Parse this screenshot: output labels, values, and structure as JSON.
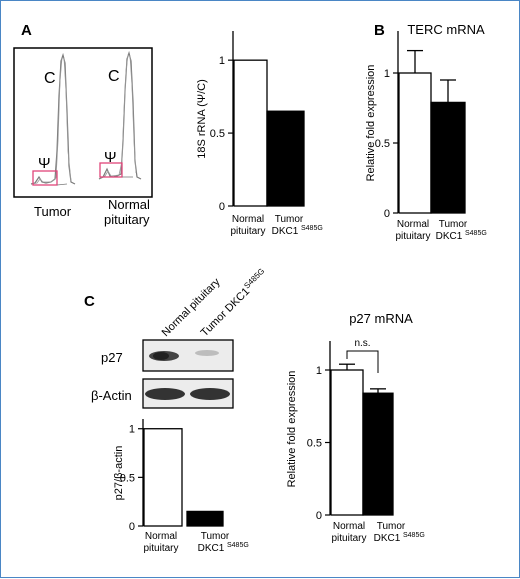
{
  "panels": {
    "a": "A",
    "b": "B",
    "c": "C"
  },
  "trace": {
    "peak_c": "C",
    "peak_psi": "Ψ",
    "tumor_label": "Tumor",
    "normal_label_1": "Normal",
    "normal_label_2": "pituitary"
  },
  "blot": {
    "lane1": "Normal pituitary",
    "lane2_main": "Tumor DKC1",
    "lane2_sup": "S485G",
    "row1": "p27",
    "row2": "β-Actin"
  },
  "categories": {
    "normal_1": "Normal",
    "normal_2": "pituitary",
    "tumor_1": "Tumor",
    "tumor_2": "DKC1",
    "tumor_sup": "S485G"
  },
  "colors": {
    "normal": "#ffffff",
    "tumor": "#000000",
    "trace": "#7a7a7a",
    "box": "#e0457a"
  },
  "chart_data": [
    {
      "id": "A_right",
      "type": "bar",
      "title": "",
      "ylabel": "18S rRNA (Ψ/C)",
      "ylim": [
        0,
        1.2
      ],
      "yticks": [
        0,
        0.5,
        1
      ],
      "categories": [
        "Normal pituitary",
        "Tumor DKC1 S485G"
      ],
      "values": [
        1.0,
        0.65
      ],
      "errors": null
    },
    {
      "id": "B",
      "type": "bar",
      "title": "TERC mRNA",
      "ylabel": "Relative fold expression",
      "ylim": [
        0,
        1.3
      ],
      "yticks": [
        0,
        0.5,
        1
      ],
      "categories": [
        "Normal pituitary",
        "Tumor DKC1 S485G"
      ],
      "values": [
        1.0,
        0.79
      ],
      "errors": [
        0.16,
        0.16
      ]
    },
    {
      "id": "C_left",
      "type": "bar",
      "title": "",
      "ylabel": "p27/β-actin",
      "ylim": [
        0,
        1.1
      ],
      "yticks": [
        0,
        0.5,
        1
      ],
      "categories": [
        "Normal pituitary",
        "Tumor DKC1 S485G"
      ],
      "values": [
        1.0,
        0.15
      ],
      "errors": null
    },
    {
      "id": "C_right",
      "type": "bar",
      "title": "p27 mRNA",
      "ylabel": "Relative fold expression",
      "ylim": [
        0,
        1.2
      ],
      "yticks": [
        0,
        0.5,
        1
      ],
      "categories": [
        "Normal pituitary",
        "Tumor DKC1 S485G"
      ],
      "values": [
        1.0,
        0.84
      ],
      "errors": [
        0.04,
        0.03
      ],
      "annotation": "n.s."
    }
  ]
}
